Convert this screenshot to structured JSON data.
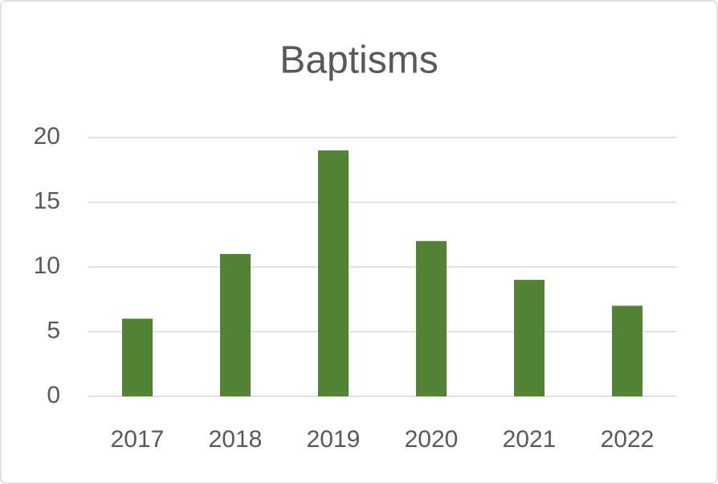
{
  "chart_data": {
    "type": "bar",
    "title": "Baptisms",
    "categories": [
      "2017",
      "2018",
      "2019",
      "2020",
      "2021",
      "2022"
    ],
    "values": [
      6,
      11,
      19,
      12,
      9,
      7
    ],
    "color": "#548235",
    "ylim": [
      0,
      20
    ],
    "yticks": [
      0,
      5,
      10,
      15,
      20
    ],
    "grid": true
  }
}
